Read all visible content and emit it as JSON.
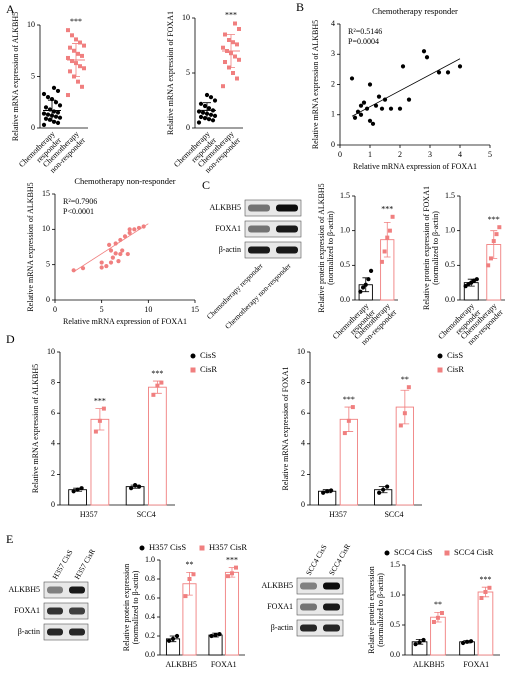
{
  "panels": [
    "A",
    "B",
    "C",
    "D",
    "E"
  ],
  "blots": [
    {
      "row_labels": [
        "ALKBH5",
        "FOXA1",
        "β-actin"
      ],
      "lane_labels": [
        "Chemotherapy responder",
        "Chemotherapy non-responder"
      ]
    },
    {
      "row_labels": [
        "ALKBH5",
        "FOXA1",
        "β-actin"
      ],
      "lane_labels": [
        "H357 CisS",
        "H357 CisR"
      ]
    },
    {
      "row_labels": [
        "ALKBH5",
        "FOXA1",
        "β-actin"
      ],
      "lane_labels": [
        "SCC4 CisS",
        "SCC4 CisR"
      ]
    }
  ],
  "chart_data": [
    {
      "type": "strip",
      "ylabel": [
        "Relative mRNA expression of ALKBH5"
      ],
      "categories": [
        [
          "Chemotherapy",
          "responder"
        ],
        [
          "Chemotherapy",
          "non-responder"
        ]
      ],
      "groups": [
        {
          "color": "#000000",
          "values": [
            0.3,
            0.5,
            0.6,
            0.8,
            0.9,
            1.0,
            1.1,
            1.2,
            1.3,
            1.4,
            1.5,
            1.6,
            1.8,
            2.0,
            2.2,
            2.5,
            2.8,
            3.0,
            3.3,
            3.6,
            3.9
          ],
          "mean": 1.7,
          "sd": 1.0
        },
        {
          "color": "#f07f7f",
          "values": [
            3.2,
            4.0,
            4.5,
            5.0,
            5.5,
            5.8,
            6.0,
            6.3,
            6.5,
            6.8,
            7.0,
            7.2,
            7.5,
            7.8,
            8.0,
            8.3,
            8.6,
            9.0,
            9.5
          ],
          "mean": 6.6,
          "sd": 1.6
        }
      ],
      "significance": [
        null,
        "***"
      ],
      "ylim": [
        0,
        10
      ],
      "yticks": [
        0,
        5,
        10
      ]
    },
    {
      "type": "strip",
      "ylabel": [
        "Relative mRNA expression of FOXA1"
      ],
      "categories": [
        [
          "Chemotherapy",
          "responder"
        ],
        [
          "Chemotherapy",
          "non-responder"
        ]
      ],
      "groups": [
        {
          "color": "#000000",
          "values": [
            0.5,
            0.7,
            0.8,
            0.9,
            1.0,
            1.1,
            1.2,
            1.3,
            1.4,
            1.5,
            1.6,
            1.8,
            2.0,
            2.2,
            2.5,
            2.8,
            3.0
          ],
          "mean": 1.6,
          "sd": 0.7
        },
        {
          "color": "#f07f7f",
          "values": [
            3.8,
            4.5,
            5.0,
            5.5,
            6.0,
            6.2,
            6.5,
            6.8,
            7.0,
            7.3,
            7.6,
            7.8,
            8.0,
            8.5,
            9.0,
            9.5
          ],
          "mean": 7.0,
          "sd": 1.5
        }
      ],
      "significance": [
        null,
        "***"
      ],
      "ylim": [
        0,
        10
      ],
      "yticks": [
        0,
        5,
        10
      ]
    },
    {
      "type": "scatter",
      "title": "Chemotherapy responder",
      "xlabel": "Relative mRNA expression of FOXA1",
      "ylabel": [
        "Relative mRNA expression of ALKBH5"
      ],
      "annotations": [
        "R²=0.5146",
        "P=0.0004"
      ],
      "color": "#000000",
      "x": [
        0.4,
        0.5,
        0.6,
        0.7,
        0.7,
        0.8,
        0.9,
        1.0,
        1.0,
        1.1,
        1.2,
        1.3,
        1.4,
        1.5,
        1.7,
        2.0,
        2.1,
        2.3,
        2.8,
        2.9,
        3.3,
        3.6,
        4.0
      ],
      "y": [
        2.2,
        0.9,
        1.1,
        1.0,
        1.3,
        1.4,
        1.2,
        2.0,
        0.8,
        0.7,
        1.3,
        1.6,
        1.2,
        1.5,
        1.2,
        1.2,
        2.6,
        1.5,
        3.1,
        2.9,
        2.4,
        2.4,
        2.6
      ],
      "fit": {
        "x": [
          0.4,
          4.0
        ],
        "y": [
          0.95,
          2.85
        ]
      },
      "xlim": [
        0,
        5
      ],
      "xticks": [
        0,
        1,
        2,
        3,
        4,
        5
      ],
      "ylim": [
        0,
        4
      ],
      "yticks": [
        0,
        1,
        2,
        3,
        4
      ]
    },
    {
      "type": "scatter",
      "title": "Chemotherapy non-responder",
      "xlabel": "Relative mRNA expression of FOXA1",
      "ylabel": [
        "Relative mRNA expression of ALKBH5"
      ],
      "annotations": [
        "R²=0.7906",
        "P<0.0001"
      ],
      "color": "#f07f7f",
      "x": [
        2,
        3,
        5,
        5,
        5.5,
        5.8,
        6,
        6,
        6.2,
        6.5,
        6.5,
        6.8,
        7,
        7,
        7.2,
        7.5,
        7.8,
        8,
        8,
        8.5,
        9,
        9.5
      ],
      "y": [
        4.2,
        4.5,
        4.6,
        5.3,
        4.8,
        7.8,
        5.3,
        7.0,
        6.0,
        6.6,
        8.0,
        5.5,
        6.5,
        8.5,
        7.0,
        9.0,
        6.5,
        9.5,
        10.0,
        10.0,
        10.2,
        10.4
      ],
      "fit": {
        "x": [
          2,
          10
        ],
        "y": [
          4.0,
          10.8
        ]
      },
      "xlim": [
        0,
        15
      ],
      "xticks": [
        0,
        5,
        10,
        15
      ],
      "ylim": [
        0,
        15
      ],
      "yticks": [
        0,
        5,
        10,
        15
      ]
    },
    {
      "type": "bar",
      "ylabel": [
        "Relative protein expression of ALKBH5",
        "(normalized to β-actin)"
      ],
      "categories": [
        [
          "Chemotherapy",
          "responder"
        ],
        [
          "Chemotherapy",
          "non-responder"
        ]
      ],
      "series": [
        {
          "colors": [
            "#000000",
            "#f07f7f"
          ],
          "markers": [
            "circle",
            "square"
          ],
          "values": [
            0.22,
            0.87
          ],
          "errors": [
            0.1,
            0.25
          ],
          "points": [
            [
              0.12,
              0.18,
              0.22,
              0.3,
              0.42
            ],
            [
              0.55,
              0.7,
              0.9,
              1.0,
              1.2
            ]
          ]
        }
      ],
      "significance": [
        null,
        "***"
      ],
      "ylim": [
        0,
        1.5
      ],
      "yticks": [
        {
          "value": 0,
          "label": "0.0"
        },
        0.5,
        {
          "value": 1,
          "label": "1.0"
        },
        1.5
      ]
    },
    {
      "type": "bar",
      "ylabel": [
        "Relative protein expression of FOXA1",
        "(normalized to β-actin)"
      ],
      "categories": [
        [
          "Chemotherapy",
          "responder"
        ],
        [
          "Chemotherapy",
          "non-responder"
        ]
      ],
      "series": [
        {
          "colors": [
            "#000000",
            "#f07f7f"
          ],
          "markers": [
            "circle",
            "square"
          ],
          "values": [
            0.25,
            0.8
          ],
          "errors": [
            0.05,
            0.2
          ],
          "points": [
            [
              0.2,
              0.23,
              0.25,
              0.28,
              0.3
            ],
            [
              0.5,
              0.6,
              0.85,
              0.95,
              1.05
            ]
          ]
        }
      ],
      "significance": [
        null,
        "***"
      ],
      "ylim": [
        0,
        1.5
      ],
      "yticks": [
        {
          "value": 0,
          "label": "0.0"
        },
        0.5,
        {
          "value": 1,
          "label": "1.0"
        },
        1.5
      ]
    },
    {
      "type": "bar",
      "ylabel": [
        "Relative mRNA expression of ALKBH5"
      ],
      "categories": [
        "H357",
        "SCC4"
      ],
      "legend": "right",
      "series": [
        {
          "name": "CisS",
          "color": "#000000",
          "marker": "circle",
          "values": [
            1.0,
            1.2
          ],
          "errors": [
            0.1,
            0.1
          ],
          "points": [
            [
              0.9,
              1.0,
              1.1
            ],
            [
              1.1,
              1.3,
              1.2
            ]
          ]
        },
        {
          "name": "CisR",
          "color": "#f07f7f",
          "marker": "square",
          "values": [
            5.6,
            7.7
          ],
          "errors": [
            0.7,
            0.4
          ],
          "points": [
            [
              4.8,
              5.5,
              6.3
            ],
            [
              7.2,
              7.8,
              8.0
            ]
          ]
        }
      ],
      "significance": [
        "***",
        "***"
      ],
      "ylim": [
        0,
        10
      ],
      "yticks": [
        0,
        2,
        4,
        6,
        8,
        10
      ]
    },
    {
      "type": "bar",
      "ylabel": [
        "Relative mRNA expression of FOXA1"
      ],
      "categories": [
        "H357",
        "SCC4"
      ],
      "legend": "right",
      "series": [
        {
          "name": "CisS",
          "color": "#000000",
          "marker": "circle",
          "values": [
            0.9,
            1.0
          ],
          "errors": [
            0.1,
            0.2
          ],
          "points": [
            [
              0.8,
              0.9,
              0.95
            ],
            [
              0.8,
              1.0,
              1.2
            ]
          ]
        },
        {
          "name": "CisR",
          "color": "#f07f7f",
          "marker": "square",
          "values": [
            5.6,
            6.4
          ],
          "errors": [
            0.8,
            1.1
          ],
          "points": [
            [
              4.7,
              5.5,
              6.4
            ],
            [
              5.2,
              6.0,
              7.7
            ]
          ]
        }
      ],
      "significance": [
        "***",
        "**"
      ],
      "ylim": [
        0,
        10
      ],
      "yticks": [
        0,
        2,
        4,
        6,
        8,
        10
      ]
    },
    {
      "type": "bar",
      "ylabel": [
        "Relative protein expression",
        "(normalized to β-actin)"
      ],
      "categories": [
        "ALKBH5",
        "FOXA1"
      ],
      "legend": "top",
      "series": [
        {
          "name": "H357 CisS",
          "color": "#000000",
          "marker": "circle",
          "values": [
            0.17,
            0.21
          ],
          "errors": [
            0.03,
            0.02
          ],
          "points": [
            [
              0.15,
              0.17,
              0.2
            ],
            [
              0.2,
              0.21,
              0.22
            ]
          ]
        },
        {
          "name": "H357 CisR",
          "color": "#f07f7f",
          "marker": "square",
          "values": [
            0.75,
            0.87
          ],
          "errors": [
            0.12,
            0.05
          ],
          "points": [
            [
              0.62,
              0.8,
              0.85
            ],
            [
              0.83,
              0.86,
              0.92
            ]
          ]
        }
      ],
      "significance": [
        "**",
        "***"
      ],
      "ylim": [
        0,
        1.0
      ],
      "yticks": [
        {
          "value": 0,
          "label": "0.0"
        },
        0.2,
        0.4,
        0.6,
        0.8,
        {
          "value": 1,
          "label": "1.0"
        }
      ]
    },
    {
      "type": "bar",
      "ylabel": [
        "Relative protein expression",
        "(normalized to β-actin)"
      ],
      "categories": [
        "ALKBH5",
        "FOXA1"
      ],
      "legend": "top",
      "series": [
        {
          "name": "SCC4 CisS",
          "color": "#000000",
          "marker": "circle",
          "values": [
            0.22,
            0.22
          ],
          "errors": [
            0.04,
            0.02
          ],
          "points": [
            [
              0.18,
              0.21,
              0.25
            ],
            [
              0.2,
              0.22,
              0.23
            ]
          ]
        },
        {
          "name": "SCC4 CisR",
          "color": "#f07f7f",
          "marker": "square",
          "values": [
            0.63,
            1.05
          ],
          "errors": [
            0.08,
            0.08
          ],
          "points": [
            [
              0.55,
              0.62,
              0.7
            ],
            [
              0.95,
              1.05,
              1.12
            ]
          ]
        }
      ],
      "significance": [
        "**",
        "***"
      ],
      "ylim": [
        0,
        1.5
      ],
      "yticks": [
        {
          "value": 0,
          "label": "0.0"
        },
        0.5,
        {
          "value": 1,
          "label": "1.0"
        },
        1.5
      ]
    }
  ]
}
